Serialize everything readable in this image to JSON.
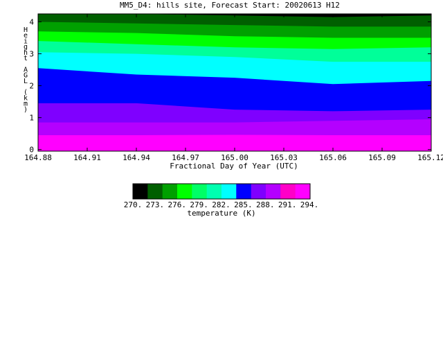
{
  "chart_data": {
    "type": "heatmap",
    "title": "MM5_D4: hills site,  Forecast Start: 20020613 H12",
    "xlabel": "Fractional Day of Year (UTC)",
    "ylabel": "Height AGL (km)",
    "x_ticks": [
      "164.88",
      "164.91",
      "164.94",
      "164.97",
      "165.00",
      "165.03",
      "165.06",
      "165.09",
      "165.12"
    ],
    "y_ticks": [
      "0",
      "1",
      "2",
      "3",
      "4"
    ],
    "xlim": [
      164.88,
      165.12
    ],
    "ylim": [
      -0.05,
      4.25
    ],
    "x": [
      164.88,
      164.94,
      165.0,
      165.06,
      165.12
    ],
    "boundaries": [
      {
        "upper_temp": 294,
        "height": [
          0.45,
          0.45,
          0.46,
          0.45,
          0.45
        ]
      },
      {
        "upper_temp": 291,
        "height": [
          0.85,
          0.85,
          0.85,
          0.9,
          0.95
        ]
      },
      {
        "upper_temp": 288,
        "height": [
          1.45,
          1.45,
          1.25,
          1.2,
          1.25
        ]
      },
      {
        "upper_temp": 285,
        "height": [
          2.55,
          2.35,
          2.25,
          2.05,
          2.15
        ]
      },
      {
        "upper_temp": 282,
        "height": [
          3.05,
          3.0,
          2.9,
          2.75,
          2.75
        ]
      },
      {
        "upper_temp": 279,
        "height": [
          3.4,
          3.3,
          3.2,
          3.15,
          3.2
        ]
      },
      {
        "upper_temp": 276,
        "height": [
          3.7,
          3.65,
          3.55,
          3.5,
          3.5
        ]
      },
      {
        "upper_temp": 273,
        "height": [
          4.0,
          3.95,
          3.9,
          3.85,
          3.85
        ]
      },
      {
        "upper_temp": 270,
        "height": [
          4.25,
          4.25,
          4.2,
          4.15,
          4.2
        ]
      }
    ],
    "colorbar": {
      "label": "temperature (K)",
      "tick_labels": [
        "270.",
        "273.",
        "276.",
        "279.",
        "282.",
        "285.",
        "288.",
        "291.",
        "294."
      ],
      "colors": [
        "#000000",
        "#005f00",
        "#00a000",
        "#00ff00",
        "#00ff66",
        "#00ffb0",
        "#00ffff",
        "#0000ff",
        "#7f00ff",
        "#b400ff",
        "#ff00c8",
        "#ff00ff"
      ]
    },
    "band_colors": {
      "294": "#ff00ff",
      "291": "#b400ff",
      "288": "#7f00ff",
      "285": "#0000ff",
      "282": "#00ffff",
      "279": "#00ff99",
      "276": "#00ff00",
      "273": "#00a000",
      "270": "#005f00",
      "267": "#000000"
    }
  }
}
